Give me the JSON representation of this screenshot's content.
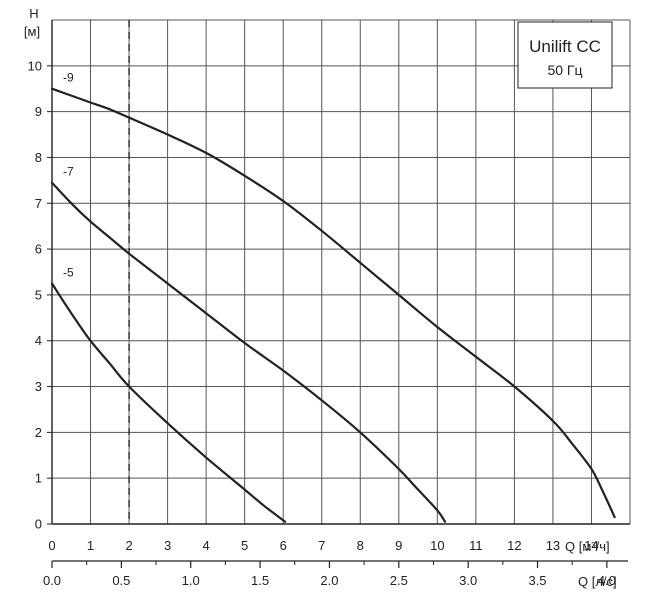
{
  "chart_data": {
    "type": "line",
    "legend": {
      "title": "Unilift CC",
      "subtitle": "50 Гц",
      "placement": "top-right"
    },
    "y_axis": {
      "name": "H",
      "unit": "[м]",
      "range": [
        0,
        11
      ],
      "ticks": [
        0,
        1,
        2,
        3,
        4,
        5,
        6,
        7,
        8,
        9,
        10
      ],
      "grid": true
    },
    "x_axis": {
      "label": "Q [м³/ч]",
      "range": [
        0,
        15
      ],
      "ticks": [
        0,
        1,
        2,
        3,
        4,
        5,
        6,
        7,
        8,
        9,
        10,
        11,
        12,
        13,
        14
      ],
      "grid": true
    },
    "x_axis_secondary": {
      "label": "Q [л/с]",
      "range": [
        0,
        4.1667
      ],
      "ticks": [
        0.0,
        0.5,
        1.0,
        1.5,
        2.0,
        2.5,
        3.0,
        3.5,
        4.0
      ],
      "tick_labels": [
        "0.0",
        "0.5",
        "1.0",
        "1.5",
        "2.0",
        "2.5",
        "3.0",
        "3.5",
        "4.0"
      ],
      "minor_ticks": [
        0.25,
        0.75,
        1.25,
        1.75,
        2.25,
        2.75,
        3.25,
        3.75
      ]
    },
    "reference_line": {
      "x": 2,
      "style": "dashed"
    },
    "series": [
      {
        "name": "-9",
        "x": [
          0,
          0.5,
          1,
          1.5,
          2,
          3,
          4,
          5,
          6,
          7,
          8,
          9,
          10,
          11,
          12,
          13,
          13.5,
          14,
          14.3,
          14.6
        ],
        "y": [
          9.5,
          9.35,
          9.2,
          9.05,
          8.87,
          8.5,
          8.1,
          7.6,
          7.05,
          6.4,
          5.7,
          5.0,
          4.3,
          3.65,
          3.0,
          2.25,
          1.75,
          1.2,
          0.7,
          0.15
        ]
      },
      {
        "name": "-7",
        "x": [
          0,
          0.5,
          1,
          1.5,
          2,
          3,
          4,
          5,
          6,
          7,
          8,
          9,
          9.5,
          10,
          10.2
        ],
        "y": [
          7.45,
          7.0,
          6.6,
          6.25,
          5.9,
          5.25,
          4.6,
          3.95,
          3.35,
          2.7,
          2.0,
          1.2,
          0.75,
          0.3,
          0.05
        ]
      },
      {
        "name": "-5",
        "x": [
          0,
          0.5,
          1,
          1.5,
          2,
          3,
          4,
          5,
          5.5,
          6.05
        ],
        "y": [
          5.25,
          4.6,
          4.0,
          3.5,
          3.0,
          2.2,
          1.45,
          0.75,
          0.4,
          0.05
        ]
      }
    ]
  }
}
